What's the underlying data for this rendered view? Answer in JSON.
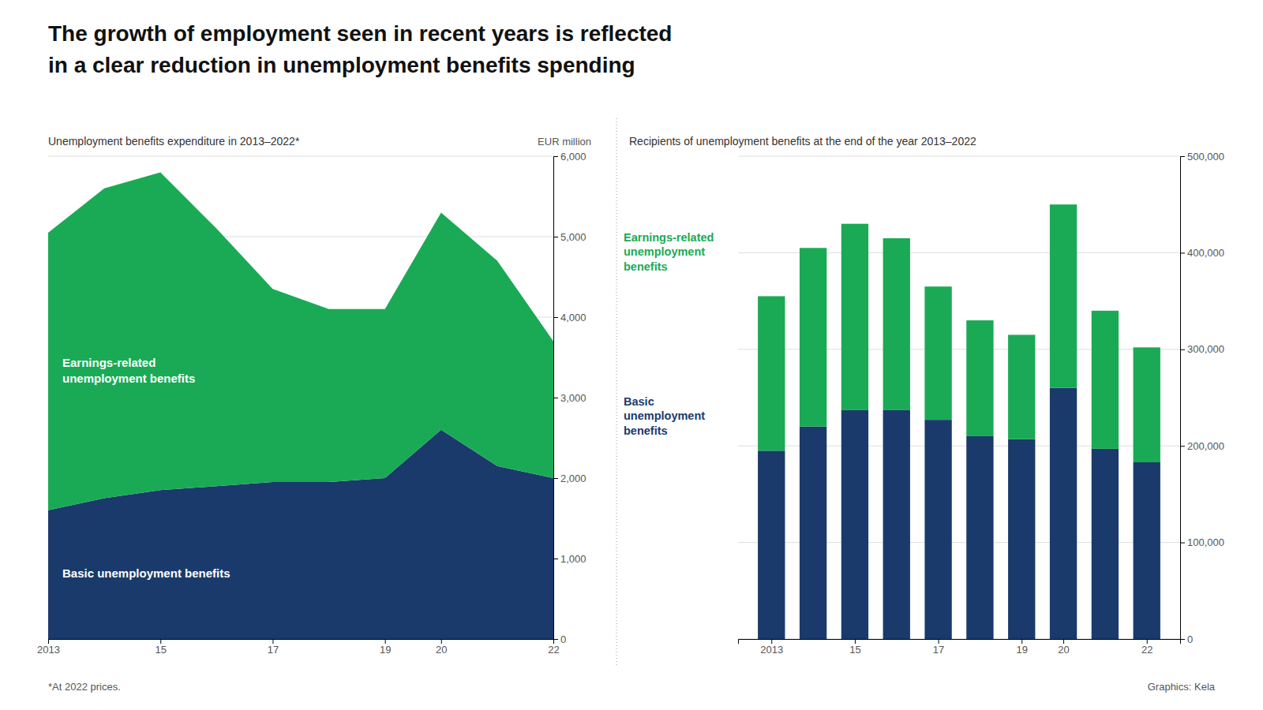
{
  "title": [
    "The growth of employment seen in recent years is reflected",
    "in a clear reduction in unemployment benefits spending"
  ],
  "annotations": [
    "*At 2022 prices.",
    "Graphics: Kela"
  ],
  "chart_data": [
    {
      "type": "area",
      "subtitle": "Unemployment benefits expenditure in 2013–2022*",
      "y_label": "EUR million",
      "stacked": true,
      "grid": true,
      "x": [
        2013,
        2014,
        2015,
        2016,
        2017,
        2018,
        2019,
        2020,
        2021,
        2022
      ],
      "series": [
        {
          "name": "Basic unemployment benefits",
          "color": "#1a3a6b",
          "values": [
            1600,
            1750,
            1850,
            1900,
            1950,
            1950,
            2000,
            2600,
            2150,
            2000
          ]
        },
        {
          "name": "Earnings-related\nunemployment benefits",
          "color": "#1aaa55",
          "values": [
            3450,
            3850,
            3950,
            3200,
            2400,
            2150,
            2100,
            2700,
            2550,
            1700
          ]
        }
      ],
      "xlim": [
        2013,
        2022
      ],
      "xticks": [
        2013,
        {
          "value": 2015,
          "label": "15"
        },
        {
          "value": 2017,
          "label": "17"
        },
        {
          "value": 2019,
          "label": "19"
        },
        {
          "value": 2020,
          "label": "20"
        },
        {
          "value": 2022,
          "label": "22"
        }
      ],
      "ylim": [
        0,
        6000
      ],
      "yticks": [
        0,
        {
          "value": 1000,
          "label": "1,000"
        },
        {
          "value": 2000,
          "label": "2,000"
        },
        {
          "value": 3000,
          "label": "3,000"
        },
        {
          "value": 4000,
          "label": "4,000"
        },
        {
          "value": 5000,
          "label": "5,000"
        },
        {
          "value": 6000,
          "label": "6,000"
        }
      ]
    },
    {
      "type": "bar",
      "subtitle": "Recipients of unemployment benefits at the end of the year 2013–2022",
      "stacked": true,
      "grid": true,
      "x": [
        2013,
        2014,
        2015,
        2016,
        2017,
        2018,
        2019,
        2020,
        2021,
        2022
      ],
      "series": [
        {
          "name": "Basic\nunemployment\nbenefits",
          "color": "#1a3a6b",
          "values": [
            195000,
            220000,
            237000,
            237000,
            227000,
            210000,
            207000,
            260000,
            197000,
            183000
          ]
        },
        {
          "name": "Earnings-related\nunemployment\nbenefits",
          "color": "#1aaa55",
          "values": [
            160000,
            185000,
            193000,
            178000,
            138000,
            120000,
            108000,
            190000,
            143000,
            119000
          ]
        }
      ],
      "xlim": [
        2012.2,
        2022.8
      ],
      "xticks": [
        2013,
        {
          "value": 2015,
          "label": "15"
        },
        {
          "value": 2017,
          "label": "17"
        },
        {
          "value": 2019,
          "label": "19"
        },
        {
          "value": 2020,
          "label": "20"
        },
        {
          "value": 2022,
          "label": "22"
        }
      ],
      "ylim": [
        0,
        500000
      ],
      "yticks": [
        0,
        {
          "value": 100000,
          "label": "100,000"
        },
        {
          "value": 200000,
          "label": "200,000"
        },
        {
          "value": 300000,
          "label": "300,000"
        },
        {
          "value": 400000,
          "label": "400,000"
        },
        {
          "value": 500000,
          "label": "500,000"
        }
      ]
    }
  ]
}
